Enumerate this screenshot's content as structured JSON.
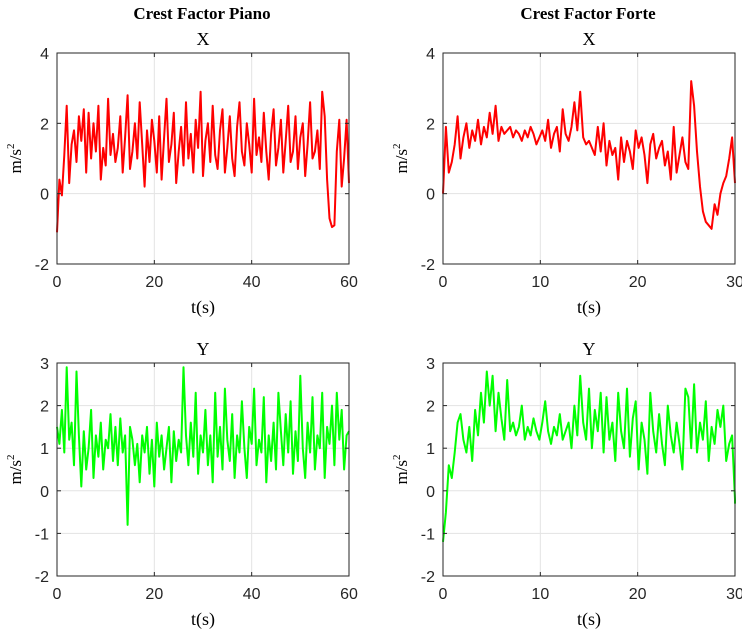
{
  "column_titles": [
    "Crest Factor Piano",
    "Crest Factor Forte"
  ],
  "chart_data": [
    {
      "type": "line",
      "title": "X",
      "xlabel": "t(s)",
      "ylabel_base": "m/s",
      "ylabel_exp": "2",
      "xlim": [
        0,
        60
      ],
      "ylim": [
        -2,
        4
      ],
      "xticks": [
        0,
        20,
        40,
        60
      ],
      "yticks": [
        -2,
        0,
        2,
        4
      ],
      "grid": true,
      "color": "#ff0000",
      "series": [
        {
          "x": [
            0,
            0.5,
            1,
            1.5,
            2,
            2.5,
            3,
            3.5,
            4,
            4.5,
            5,
            5.5,
            6,
            6.5,
            7,
            7.5,
            8,
            8.5,
            9,
            9.5,
            10,
            10.5,
            11,
            11.5,
            12,
            12.5,
            13,
            13.5,
            14,
            14.5,
            15,
            15.5,
            16,
            16.5,
            17,
            17.5,
            18,
            18.5,
            19,
            19.5,
            20,
            20.5,
            21,
            21.5,
            22,
            22.5,
            23,
            23.5,
            24,
            24.5,
            25,
            25.5,
            26,
            26.5,
            27,
            27.5,
            28,
            28.5,
            29,
            29.5,
            30,
            30.5,
            31,
            31.5,
            32,
            32.5,
            33,
            33.5,
            34,
            34.5,
            35,
            35.5,
            36,
            36.5,
            37,
            37.5,
            38,
            38.5,
            39,
            39.5,
            40,
            40.5,
            41,
            41.5,
            42,
            42.5,
            43,
            43.5,
            44,
            44.5,
            45,
            45.5,
            46,
            46.5,
            47,
            47.5,
            48,
            48.5,
            49,
            49.5,
            50,
            50.5,
            51,
            51.5,
            52,
            52.5,
            53,
            53.5,
            54,
            54.5,
            55,
            55.5,
            56,
            56.5,
            57,
            57.5,
            58,
            58.5,
            59,
            59.5,
            60
          ],
          "y": [
            -1.1,
            0.4,
            -0.05,
            1.1,
            2.5,
            0.3,
            1.4,
            1.8,
            0.9,
            2.2,
            1.5,
            2.4,
            0.6,
            2.3,
            1.0,
            2.0,
            1.2,
            2.5,
            0.4,
            1.3,
            0.8,
            2.7,
            1.1,
            1.7,
            0.9,
            1.3,
            2.2,
            0.6,
            1.6,
            2.8,
            0.7,
            1.2,
            2.0,
            1.0,
            2.6,
            1.4,
            0.2,
            1.8,
            0.9,
            2.1,
            1.5,
            0.6,
            2.2,
            0.4,
            1.6,
            2.7,
            0.9,
            1.4,
            2.3,
            0.3,
            1.2,
            1.9,
            0.8,
            2.6,
            1.0,
            1.7,
            0.6,
            2.1,
            1.3,
            2.9,
            0.5,
            1.5,
            2.0,
            0.9,
            2.5,
            1.1,
            0.7,
            1.8,
            2.4,
            0.6,
            1.3,
            2.2,
            1.0,
            0.5,
            1.9,
            2.6,
            1.2,
            0.8,
            2.0,
            1.4,
            0.6,
            2.7,
            1.1,
            1.6,
            0.9,
            2.3,
            1.2,
            0.4,
            1.7,
            2.4,
            0.8,
            1.3,
            2.1,
            0.6,
            1.5,
            2.5,
            0.9,
            1.2,
            2.2,
            0.7,
            1.6,
            2.0,
            0.5,
            1.4,
            2.6,
            1.0,
            1.2,
            1.8,
            0.7,
            2.9,
            2.2,
            0.4,
            -0.7,
            -0.95,
            -0.9,
            1.2,
            2.1,
            0.2,
            1.0,
            2.1,
            0.3
          ]
        }
      ]
    },
    {
      "type": "line",
      "title": "X",
      "xlabel": "t(s)",
      "ylabel_base": "m/s",
      "ylabel_exp": "2",
      "xlim": [
        0,
        30
      ],
      "ylim": [
        -2,
        4
      ],
      "xticks": [
        0,
        10,
        20,
        30
      ],
      "yticks": [
        -2,
        0,
        2,
        4
      ],
      "grid": true,
      "color": "#ff0000",
      "series": [
        {
          "x": [
            0,
            0.3,
            0.6,
            0.9,
            1.2,
            1.5,
            1.8,
            2.1,
            2.4,
            2.7,
            3.0,
            3.3,
            3.6,
            3.9,
            4.2,
            4.5,
            4.8,
            5.1,
            5.4,
            5.7,
            6.0,
            6.3,
            6.6,
            6.9,
            7.2,
            7.5,
            7.8,
            8.1,
            8.4,
            8.7,
            9.0,
            9.3,
            9.6,
            9.9,
            10.2,
            10.5,
            10.8,
            11.1,
            11.4,
            11.7,
            12.0,
            12.3,
            12.6,
            12.9,
            13.2,
            13.5,
            13.8,
            14.1,
            14.4,
            14.7,
            15.0,
            15.3,
            15.6,
            15.9,
            16.2,
            16.5,
            16.8,
            17.1,
            17.4,
            17.7,
            18.0,
            18.3,
            18.6,
            18.9,
            19.2,
            19.5,
            19.8,
            20.1,
            20.4,
            20.7,
            21.0,
            21.3,
            21.6,
            21.9,
            22.2,
            22.5,
            22.8,
            23.1,
            23.4,
            23.7,
            24.0,
            24.3,
            24.6,
            24.9,
            25.2,
            25.5,
            25.8,
            26.1,
            26.4,
            26.7,
            27.0,
            27.3,
            27.6,
            27.9,
            28.2,
            28.5,
            28.8,
            29.1,
            29.4,
            29.7,
            30.0,
            30.3
          ],
          "y": [
            0.0,
            1.9,
            0.6,
            0.9,
            1.4,
            2.2,
            1.0,
            1.6,
            2.0,
            1.3,
            1.8,
            1.5,
            2.1,
            1.4,
            1.9,
            1.6,
            2.3,
            1.7,
            2.5,
            1.5,
            1.9,
            1.7,
            1.8,
            1.9,
            1.6,
            1.8,
            1.7,
            1.5,
            1.8,
            1.6,
            1.9,
            1.7,
            1.4,
            1.6,
            1.8,
            1.5,
            2.1,
            1.3,
            1.7,
            1.9,
            1.2,
            2.4,
            1.7,
            1.5,
            1.9,
            2.6,
            1.8,
            2.9,
            1.6,
            1.4,
            1.5,
            1.3,
            1.1,
            1.9,
            1.2,
            2.0,
            0.8,
            1.5,
            1.1,
            1.3,
            0.4,
            1.6,
            0.9,
            1.5,
            1.2,
            0.7,
            1.8,
            1.3,
            1.6,
            1.1,
            0.3,
            1.4,
            1.7,
            1.0,
            1.3,
            1.5,
            0.8,
            1.2,
            0.4,
            1.9,
            0.6,
            1.1,
            1.6,
            0.9,
            0.7,
            3.2,
            2.5,
            1.2,
            0.2,
            -0.5,
            -0.8,
            -0.9,
            -1.0,
            -0.3,
            -0.6,
            0.0,
            0.3,
            0.5,
            1.0,
            1.6,
            0.3,
            0.3
          ]
        }
      ]
    },
    {
      "type": "line",
      "title": "Y",
      "xlabel": "t(s)",
      "ylabel_base": "m/s",
      "ylabel_exp": "2",
      "xlim": [
        0,
        60
      ],
      "ylim": [
        -2,
        3
      ],
      "xticks": [
        0,
        20,
        40,
        60
      ],
      "yticks": [
        -2,
        -1,
        0,
        1,
        2,
        3
      ],
      "grid": true,
      "color": "#00ff00",
      "series": [
        {
          "x": [
            0,
            0.5,
            1,
            1.5,
            2,
            2.5,
            3,
            3.5,
            4,
            4.5,
            5,
            5.5,
            6,
            6.5,
            7,
            7.5,
            8,
            8.5,
            9,
            9.5,
            10,
            10.5,
            11,
            11.5,
            12,
            12.5,
            13,
            13.5,
            14,
            14.5,
            15,
            15.5,
            16,
            16.5,
            17,
            17.5,
            18,
            18.5,
            19,
            19.5,
            20,
            20.5,
            21,
            21.5,
            22,
            22.5,
            23,
            23.5,
            24,
            24.5,
            25,
            25.5,
            26,
            26.5,
            27,
            27.5,
            28,
            28.5,
            29,
            29.5,
            30,
            30.5,
            31,
            31.5,
            32,
            32.5,
            33,
            33.5,
            34,
            34.5,
            35,
            35.5,
            36,
            36.5,
            37,
            37.5,
            38,
            38.5,
            39,
            39.5,
            40,
            40.5,
            41,
            41.5,
            42,
            42.5,
            43,
            43.5,
            44,
            44.5,
            45,
            45.5,
            46,
            46.5,
            47,
            47.5,
            48,
            48.5,
            49,
            49.5,
            50,
            50.5,
            51,
            51.5,
            52,
            52.5,
            53,
            53.5,
            54,
            54.5,
            55,
            55.5,
            56,
            56.5,
            57,
            57.5,
            58,
            58.5,
            59,
            59.5,
            60
          ],
          "y": [
            1.5,
            1.1,
            1.9,
            0.9,
            2.9,
            1.2,
            1.6,
            0.6,
            2.8,
            1.3,
            0.1,
            1.4,
            0.5,
            1.0,
            1.9,
            0.3,
            1.3,
            0.8,
            1.6,
            0.5,
            1.2,
            1.0,
            1.8,
            0.7,
            1.5,
            0.6,
            1.7,
            0.9,
            1.3,
            -0.8,
            1.5,
            1.2,
            0.6,
            1.1,
            0.2,
            1.3,
            0.9,
            1.5,
            0.4,
            1.2,
            0.1,
            1.6,
            0.8,
            1.3,
            0.5,
            1.0,
            1.5,
            0.2,
            1.4,
            0.7,
            1.2,
            0.9,
            2.9,
            1.3,
            0.6,
            1.6,
            0.8,
            2.3,
            0.4,
            1.3,
            0.9,
            1.9,
            0.6,
            1.3,
            0.2,
            2.3,
            0.8,
            1.5,
            0.5,
            2.4,
            1.2,
            0.7,
            1.8,
            0.3,
            1.3,
            0.9,
            2.1,
            1.0,
            0.3,
            1.5,
            1.1,
            2.4,
            0.6,
            1.2,
            0.9,
            2.2,
            0.2,
            1.3,
            0.7,
            1.6,
            0.5,
            2.3,
            1.4,
            0.6,
            1.8,
            0.9,
            2.1,
            0.4,
            1.4,
            0.7,
            2.7,
            1.0,
            0.3,
            1.6,
            0.9,
            2.2,
            0.5,
            1.3,
            1.0,
            2.3,
            0.3,
            1.5,
            1.1,
            2.0,
            0.6,
            2.3,
            1.2,
            1.9,
            0.5,
            1.3,
            1.4
          ]
        }
      ]
    },
    {
      "type": "line",
      "title": "Y",
      "xlabel": "t(s)",
      "ylabel_base": "m/s",
      "ylabel_exp": "2",
      "xlim": [
        0,
        30
      ],
      "ylim": [
        -2,
        3
      ],
      "xticks": [
        0,
        10,
        20,
        30
      ],
      "yticks": [
        -2,
        -1,
        0,
        1,
        2,
        3
      ],
      "grid": true,
      "color": "#00ff00",
      "series": [
        {
          "x": [
            0,
            0.3,
            0.6,
            0.9,
            1.2,
            1.5,
            1.8,
            2.1,
            2.4,
            2.7,
            3.0,
            3.3,
            3.6,
            3.9,
            4.2,
            4.5,
            4.8,
            5.1,
            5.4,
            5.7,
            6.0,
            6.3,
            6.6,
            6.9,
            7.2,
            7.5,
            7.8,
            8.1,
            8.4,
            8.7,
            9.0,
            9.3,
            9.6,
            9.9,
            10.2,
            10.5,
            10.8,
            11.1,
            11.4,
            11.7,
            12.0,
            12.3,
            12.6,
            12.9,
            13.2,
            13.5,
            13.8,
            14.1,
            14.4,
            14.7,
            15.0,
            15.3,
            15.6,
            15.9,
            16.2,
            16.5,
            16.8,
            17.1,
            17.4,
            17.7,
            18.0,
            18.3,
            18.6,
            18.9,
            19.2,
            19.5,
            19.8,
            20.1,
            20.4,
            20.7,
            21.0,
            21.3,
            21.6,
            21.9,
            22.2,
            22.5,
            22.8,
            23.1,
            23.4,
            23.7,
            24.0,
            24.3,
            24.6,
            24.9,
            25.2,
            25.5,
            25.8,
            26.1,
            26.4,
            26.7,
            27.0,
            27.3,
            27.6,
            27.9,
            28.2,
            28.5,
            28.8,
            29.1,
            29.4,
            29.7,
            30.0,
            30.3
          ],
          "y": [
            -1.2,
            -0.5,
            0.6,
            0.3,
            0.9,
            1.6,
            1.8,
            1.2,
            0.9,
            1.5,
            0.7,
            1.9,
            1.3,
            2.3,
            1.6,
            2.8,
            2.0,
            2.7,
            1.4,
            2.3,
            1.7,
            1.2,
            2.6,
            1.4,
            1.6,
            1.3,
            1.5,
            2.0,
            1.2,
            1.5,
            1.3,
            1.7,
            1.4,
            1.2,
            1.6,
            2.1,
            1.4,
            1.1,
            1.5,
            1.3,
            1.8,
            1.2,
            1.4,
            1.6,
            1.0,
            2.0,
            1.3,
            2.7,
            1.6,
            1.2,
            2.4,
            1.0,
            1.9,
            1.4,
            2.3,
            0.9,
            2.2,
            1.2,
            1.6,
            0.7,
            2.3,
            1.4,
            1.0,
            2.4,
            0.8,
            1.7,
            2.1,
            0.5,
            1.6,
            1.2,
            0.4,
            2.3,
            1.4,
            0.9,
            1.8,
            1.1,
            0.6,
            2.0,
            1.3,
            0.9,
            1.6,
            1.1,
            0.5,
            2.4,
            2.2,
            1.0,
            2.5,
            0.9,
            1.6,
            1.2,
            2.1,
            0.7,
            1.5,
            1.1,
            1.9,
            1.5,
            2.0,
            0.7,
            1.1,
            1.3,
            -0.2,
            -0.3
          ]
        }
      ]
    }
  ]
}
